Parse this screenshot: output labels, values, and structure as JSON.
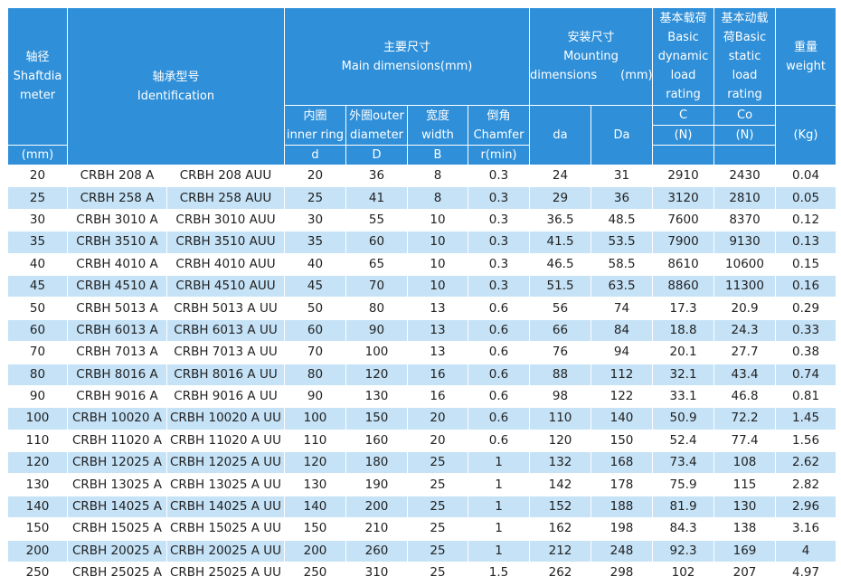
{
  "header": {
    "shaft": [
      "轴径",
      "Shaftdia",
      "meter"
    ],
    "shaft_unit": "(mm)",
    "identification": [
      "轴承型号",
      "Identification"
    ],
    "main": [
      "主要尺寸",
      "Main dimensions(mm)"
    ],
    "inner": [
      "内圈",
      "inner ring"
    ],
    "outer": [
      "外圈outer",
      "diameter"
    ],
    "width": [
      "宽度",
      "width"
    ],
    "chamfer": [
      "倒角",
      "Chamfer"
    ],
    "d": "d",
    "D": "D",
    "B": "B",
    "r": "r(min)",
    "mounting": [
      "安装尺寸",
      "Mounting",
      "dimensions　　(mm)"
    ],
    "da": "da",
    "Da": "Da",
    "dynamic": [
      "基本载荷",
      "Basic",
      "dynamic",
      "load",
      "rating"
    ],
    "C": "C",
    "C_unit": "(N)",
    "static": [
      "基本动载",
      "荷Basic",
      "static",
      "load",
      "rating"
    ],
    "Co": "Co",
    "Co_unit": "(N)",
    "weight": [
      "重量",
      "weight"
    ],
    "weight_unit": "(Kg)"
  },
  "rows": [
    [
      "20",
      "CRBH 208 A",
      "CRBH 208 AUU",
      "20",
      "36",
      "8",
      "0.3",
      "24",
      "31",
      "2910",
      "2430",
      "0.04"
    ],
    [
      "25",
      "CRBH 258 A",
      "CRBH 258 AUU",
      "25",
      "41",
      "8",
      "0.3",
      "29",
      "36",
      "3120",
      "2810",
      "0.05"
    ],
    [
      "30",
      "CRBH 3010 A",
      "CRBH 3010 AUU",
      "30",
      "55",
      "10",
      "0.3",
      "36.5",
      "48.5",
      "7600",
      "8370",
      "0.12"
    ],
    [
      "35",
      "CRBH 3510 A",
      "CRBH 3510 AUU",
      "35",
      "60",
      "10",
      "0.3",
      "41.5",
      "53.5",
      "7900",
      "9130",
      "0.13"
    ],
    [
      "40",
      "CRBH 4010 A",
      "CRBH 4010 AUU",
      "40",
      "65",
      "10",
      "0.3",
      "46.5",
      "58.5",
      "8610",
      "10600",
      "0.15"
    ],
    [
      "45",
      "CRBH 4510 A",
      "CRBH 4510 AUU",
      "45",
      "70",
      "10",
      "0.3",
      "51.5",
      "63.5",
      "8860",
      "11300",
      "0.16"
    ],
    [
      "50",
      "CRBH 5013 A",
      "CRBH 5013 A UU",
      "50",
      "80",
      "13",
      "0.6",
      "56",
      "74",
      "17.3",
      "20.9",
      "0.29"
    ],
    [
      "60",
      "CRBH 6013 A",
      "CRBH 6013 A UU",
      "60",
      "90",
      "13",
      "0.6",
      "66",
      "84",
      "18.8",
      "24.3",
      "0.33"
    ],
    [
      "70",
      "CRBH 7013 A",
      "CRBH 7013 A UU",
      "70",
      "100",
      "13",
      "0.6",
      "76",
      "94",
      "20.1",
      "27.7",
      "0.38"
    ],
    [
      "80",
      "CRBH 8016 A",
      "CRBH 8016 A UU",
      "80",
      "120",
      "16",
      "0.6",
      "88",
      "112",
      "32.1",
      "43.4",
      "0.74"
    ],
    [
      "90",
      "CRBH 9016 A",
      "CRBH 9016 A UU",
      "90",
      "130",
      "16",
      "0.6",
      "98",
      "122",
      "33.1",
      "46.8",
      "0.81"
    ],
    [
      "100",
      "CRBH 10020 A",
      "CRBH 10020 A UU",
      "100",
      "150",
      "20",
      "0.6",
      "110",
      "140",
      "50.9",
      "72.2",
      "1.45"
    ],
    [
      "110",
      "CRBH 11020 A",
      "CRBH 11020 A UU",
      "110",
      "160",
      "20",
      "0.6",
      "120",
      "150",
      "52.4",
      "77.4",
      "1.56"
    ],
    [
      "120",
      "CRBH 12025 A",
      "CRBH 12025 A UU",
      "120",
      "180",
      "25",
      "1",
      "132",
      "168",
      "73.4",
      "108",
      "2.62"
    ],
    [
      "130",
      "CRBH 13025 A",
      "CRBH 13025 A UU",
      "130",
      "190",
      "25",
      "1",
      "142",
      "178",
      "75.9",
      "115",
      "2.82"
    ],
    [
      "140",
      "CRBH 14025 A",
      "CRBH 14025 A UU",
      "140",
      "200",
      "25",
      "1",
      "152",
      "188",
      "81.9",
      "130",
      "2.96"
    ],
    [
      "150",
      "CRBH 15025 A",
      "CRBH 15025 A UU",
      "150",
      "210",
      "25",
      "1",
      "162",
      "198",
      "84.3",
      "138",
      "3.16"
    ],
    [
      "200",
      "CRBH 20025 A",
      "CRBH 20025 A UU",
      "200",
      "260",
      "25",
      "1",
      "212",
      "248",
      "92.3",
      "169",
      "4"
    ],
    [
      "250",
      "CRBH 25025 A",
      "CRBH 25025 A UU",
      "250",
      "310",
      "25",
      "1.5",
      "262",
      "298",
      "102",
      "207",
      "4.97"
    ]
  ]
}
